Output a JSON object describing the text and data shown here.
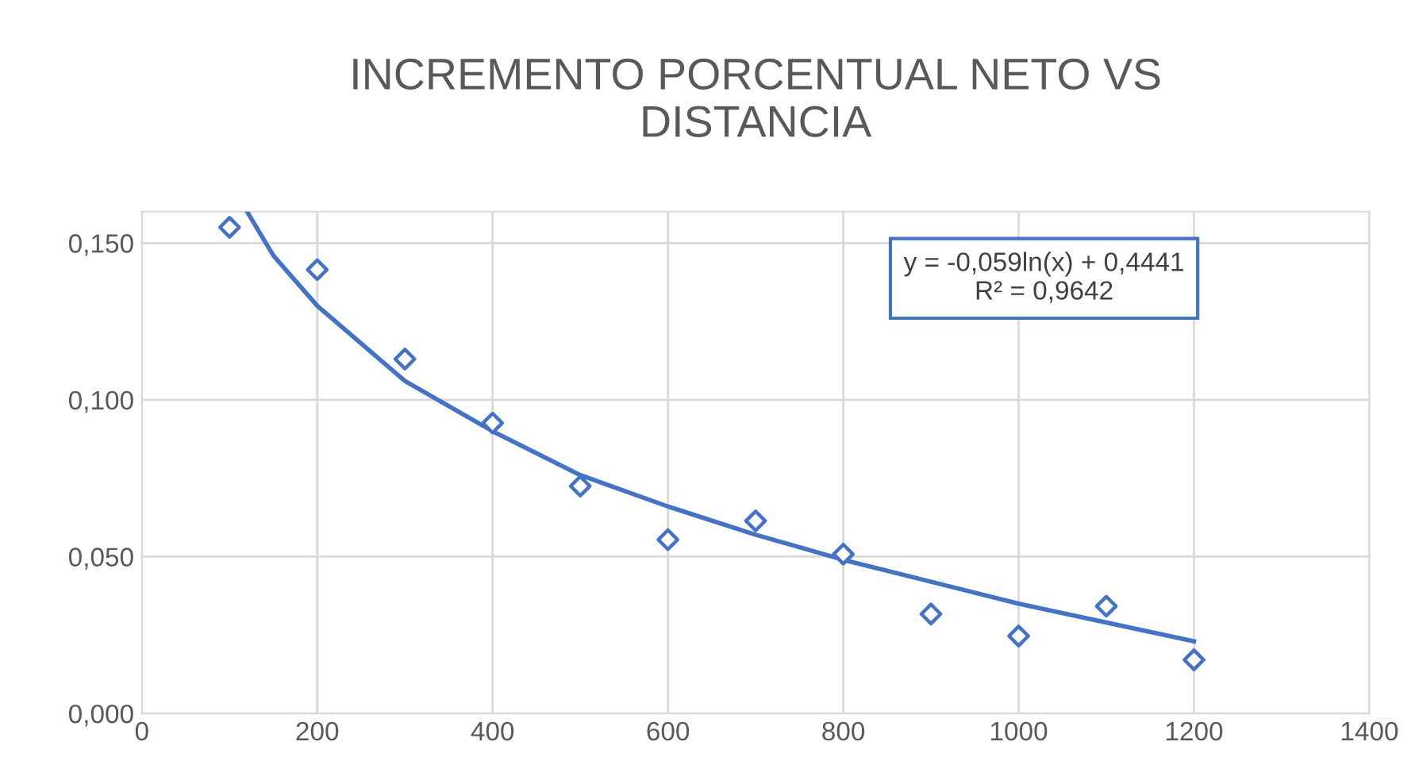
{
  "chart_data": {
    "type": "scatter",
    "title": "INCREMENTO PORCENTUAL NETO VS\nDISTANCIA",
    "x": [
      100,
      200,
      300,
      400,
      500,
      600,
      700,
      800,
      900,
      1000,
      1100,
      1200
    ],
    "series": [
      {
        "color": "#4472c4",
        "marker": "diamond",
        "values": [
          0.155,
          0.1415,
          0.113,
          0.0926,
          0.0725,
          0.0554,
          0.0614,
          0.0508,
          0.0317,
          0.0247,
          0.0342,
          0.0171
        ]
      },
      {
        "type": "line",
        "color": "#4472c4",
        "x": [
          120,
          150,
          200,
          300,
          400,
          500,
          600,
          700,
          800,
          900,
          1000,
          1100,
          1200
        ],
        "values": [
          0.16,
          0.146,
          0.13,
          0.106,
          0.09,
          0.076,
          0.066,
          0.057,
          0.049,
          0.042,
          0.035,
          0.029,
          0.023
        ]
      }
    ],
    "annotations": [
      "y = -0,059ln(x) + 0,4441\nR² = 0,9642"
    ],
    "xlim": [
      0,
      1400
    ],
    "xticks": [
      0,
      200,
      400,
      600,
      800,
      1000,
      1200,
      1400
    ],
    "ylim": [
      0,
      0.16
    ],
    "yticks": [
      {
        "value": 0,
        "label": "0,000"
      },
      {
        "value": 0.05,
        "label": "0,050"
      },
      {
        "value": 0.1,
        "label": "0,100"
      },
      {
        "value": 0.15,
        "label": "0,150"
      }
    ],
    "grid": true
  }
}
